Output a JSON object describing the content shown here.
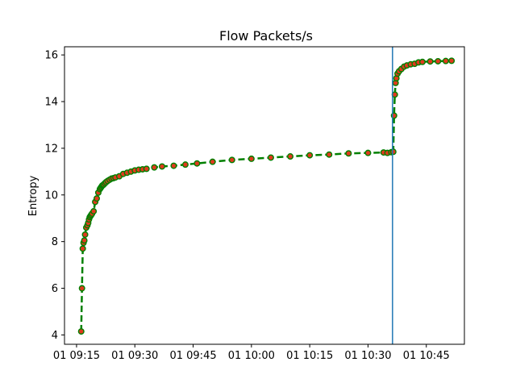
{
  "chart_data": {
    "type": "line",
    "title": "Flow Packets/s",
    "xlabel": "",
    "ylabel": "Entropy",
    "x_tick_labels": [
      "01 09:15",
      "01 09:30",
      "01 09:45",
      "01 10:00",
      "01 10:15",
      "01 10:30",
      "01 10:45"
    ],
    "x_tick_minutes": [
      555,
      570,
      585,
      600,
      615,
      630,
      645
    ],
    "y_ticks": [
      4,
      6,
      8,
      10,
      12,
      14,
      16
    ],
    "xlim_minutes": [
      551.9,
      654.8
    ],
    "ylim": [
      3.6,
      16.35
    ],
    "grid": false,
    "vertical_line_minute": 636.3,
    "line_color": "#008000",
    "marker_fill": "#e03a1e",
    "marker_edge": "#008000",
    "vline_color": "#1f77b4",
    "series": [
      {
        "x_minutes": [
          556.2,
          556.4,
          556.6,
          556.8,
          557.0,
          557.2,
          557.5,
          557.8,
          558.0,
          558.2,
          558.4,
          558.6,
          558.8,
          559.0,
          559.4,
          559.8,
          560.2,
          560.6,
          561.0,
          561.2,
          561.4,
          561.6,
          561.8,
          562.0,
          562.3,
          562.6,
          563.0,
          563.5,
          564.0,
          564.5,
          565.0,
          566.0,
          567.0,
          568.0,
          569.0,
          570.0,
          571.0,
          572.0,
          573.0,
          575.0,
          577.0,
          580.0,
          583.0,
          586.0,
          590.0,
          595.0,
          600.0,
          605.0,
          610.0,
          615.0,
          620.0,
          625.0,
          630.0,
          634.0,
          635.0,
          636.0,
          636.5,
          636.7,
          636.9,
          637.1,
          637.3,
          637.6,
          638.0,
          638.6,
          639.3,
          640.0,
          641.0,
          642.0,
          643.0,
          644.0,
          646.0,
          648.0,
          650.0,
          651.5
        ],
        "y": [
          4.15,
          6.0,
          7.7,
          7.95,
          8.05,
          8.3,
          8.6,
          8.7,
          8.8,
          8.95,
          9.05,
          9.1,
          9.15,
          9.2,
          9.3,
          9.7,
          9.85,
          10.1,
          10.25,
          10.3,
          10.35,
          10.4,
          10.42,
          10.45,
          10.5,
          10.55,
          10.6,
          10.65,
          10.7,
          10.72,
          10.75,
          10.8,
          10.9,
          10.95,
          11.0,
          11.05,
          11.08,
          11.1,
          11.12,
          11.18,
          11.22,
          11.25,
          11.3,
          11.35,
          11.42,
          11.5,
          11.55,
          11.6,
          11.65,
          11.7,
          11.73,
          11.78,
          11.8,
          11.82,
          11.8,
          11.83,
          11.85,
          13.4,
          14.3,
          14.8,
          15.0,
          15.2,
          15.3,
          15.4,
          15.5,
          15.55,
          15.6,
          15.62,
          15.68,
          15.7,
          15.72,
          15.73,
          15.74,
          15.75
        ]
      }
    ]
  }
}
